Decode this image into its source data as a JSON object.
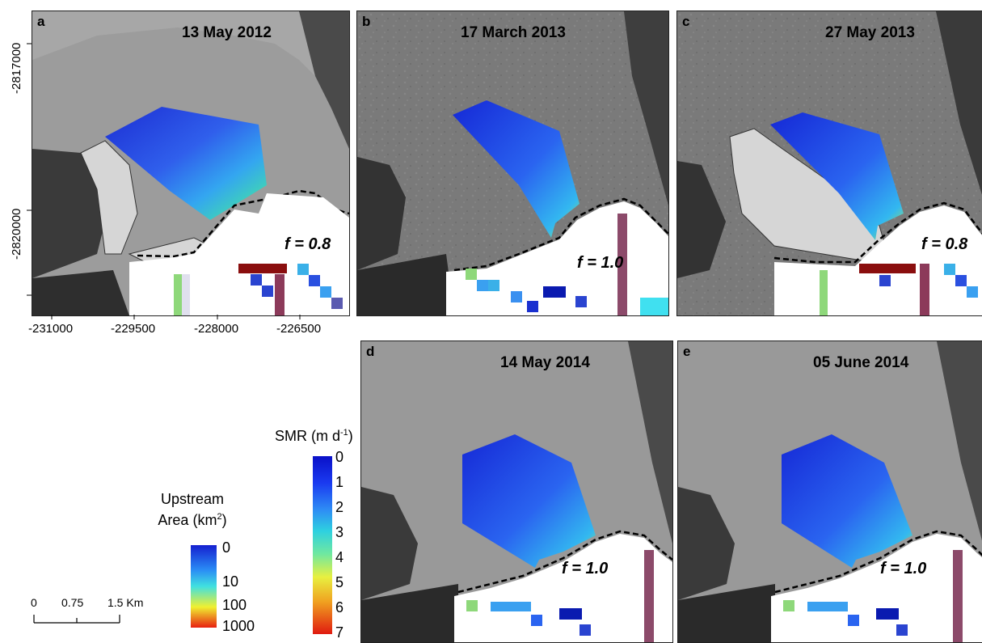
{
  "panels": [
    {
      "letter": "a",
      "date": "13 May 2012",
      "f": "f = 0.8"
    },
    {
      "letter": "b",
      "date": "17 March 2013",
      "f": "f = 1.0"
    },
    {
      "letter": "c",
      "date": "27 May 2013",
      "f": "f = 0.8"
    },
    {
      "letter": "d",
      "date": "14 May 2014",
      "f": "f = 1.0"
    },
    {
      "letter": "e",
      "date": "05 June 2014",
      "f": "f = 1.0"
    }
  ],
  "axes": {
    "x_ticks": [
      "-231000",
      "-229500",
      "-228000",
      "-226500"
    ],
    "y_ticks": [
      "-2817000",
      "-2820000"
    ]
  },
  "legend_smr": {
    "title": "SMR (m d",
    "title_sup": "-1",
    "title_end": ")",
    "labels": [
      "0",
      "1",
      "2",
      "3",
      "4",
      "5",
      "6",
      "7"
    ]
  },
  "legend_area": {
    "title_line1": "Upstream",
    "title_line2": "Area (km",
    "title_sup": "2",
    "title_end": ")",
    "labels": [
      "0",
      "10",
      "100",
      "1000"
    ]
  },
  "scale_bar": {
    "labels": [
      "0",
      "0.75",
      "1.5 Km"
    ]
  },
  "colors": {
    "melt_low": "#1a2fe0",
    "melt_high": "#e03010",
    "plume": "#d8d8d8",
    "ice": "#ffffff"
  }
}
